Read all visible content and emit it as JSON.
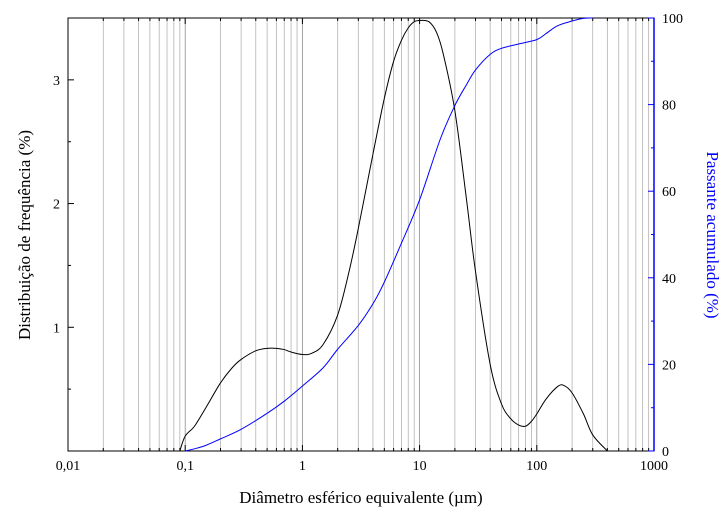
{
  "chart_data": {
    "type": "line",
    "xlabel": "Diâmetro esférico equivalente (µm)",
    "ylabel_left": "Distribuição de frequência (%)",
    "ylabel_right": "Passante acumulado (%)",
    "x_scale": "log",
    "xlim": [
      0.01,
      1000
    ],
    "ylim_left": [
      0,
      3.5
    ],
    "ylim_right": [
      0,
      100
    ],
    "x_tick_labels": [
      "0,01",
      "0,1",
      "1",
      "10",
      "100",
      "1000"
    ],
    "y_left_tick_labels": [
      "1",
      "2",
      "3"
    ],
    "y_right_tick_labels": [
      "0",
      "20",
      "40",
      "60",
      "80",
      "100"
    ],
    "grid": "vertical log minor gridlines",
    "colors": {
      "frequency": "#000000",
      "cumulative": "#0000ff",
      "right_axis": "#0000ff",
      "grid": "#b4b4b4"
    },
    "series": [
      {
        "axis": "left",
        "x": [
          0.09,
          0.1,
          0.12,
          0.15,
          0.2,
          0.25,
          0.3,
          0.4,
          0.5,
          0.6,
          0.7,
          0.8,
          1.0,
          1.2,
          1.5,
          2,
          2.5,
          3,
          4,
          5,
          6,
          7,
          8,
          9,
          10,
          12,
          14,
          16,
          20,
          25,
          30,
          40,
          50,
          60,
          70,
          80,
          90,
          100,
          120,
          150,
          170,
          200,
          250,
          300,
          400
        ],
        "y": [
          0.0,
          0.12,
          0.2,
          0.35,
          0.55,
          0.67,
          0.74,
          0.81,
          0.83,
          0.83,
          0.82,
          0.8,
          0.78,
          0.79,
          0.86,
          1.1,
          1.45,
          1.8,
          2.4,
          2.85,
          3.15,
          3.32,
          3.42,
          3.47,
          3.48,
          3.47,
          3.38,
          3.2,
          2.75,
          2.05,
          1.45,
          0.7,
          0.38,
          0.26,
          0.21,
          0.2,
          0.24,
          0.3,
          0.42,
          0.52,
          0.53,
          0.47,
          0.3,
          0.13,
          0.0
        ]
      },
      {
        "axis": "right",
        "x": [
          0.1,
          0.12,
          0.15,
          0.2,
          0.3,
          0.5,
          0.7,
          1.0,
          1.5,
          2,
          3,
          4,
          5,
          7,
          10,
          15,
          20,
          25,
          30,
          40,
          50,
          70,
          100,
          120,
          150,
          200,
          250,
          300
        ],
        "y": [
          0,
          0.5,
          1.3,
          2.8,
          5.0,
          8.7,
          11.5,
          15.0,
          19.2,
          23.5,
          29.0,
          34.0,
          39.0,
          48.0,
          58.0,
          72.0,
          79.8,
          84.5,
          88.0,
          91.6,
          93.0,
          94.0,
          95.0,
          96.4,
          98.2,
          99.3,
          99.9,
          100
        ]
      }
    ]
  }
}
